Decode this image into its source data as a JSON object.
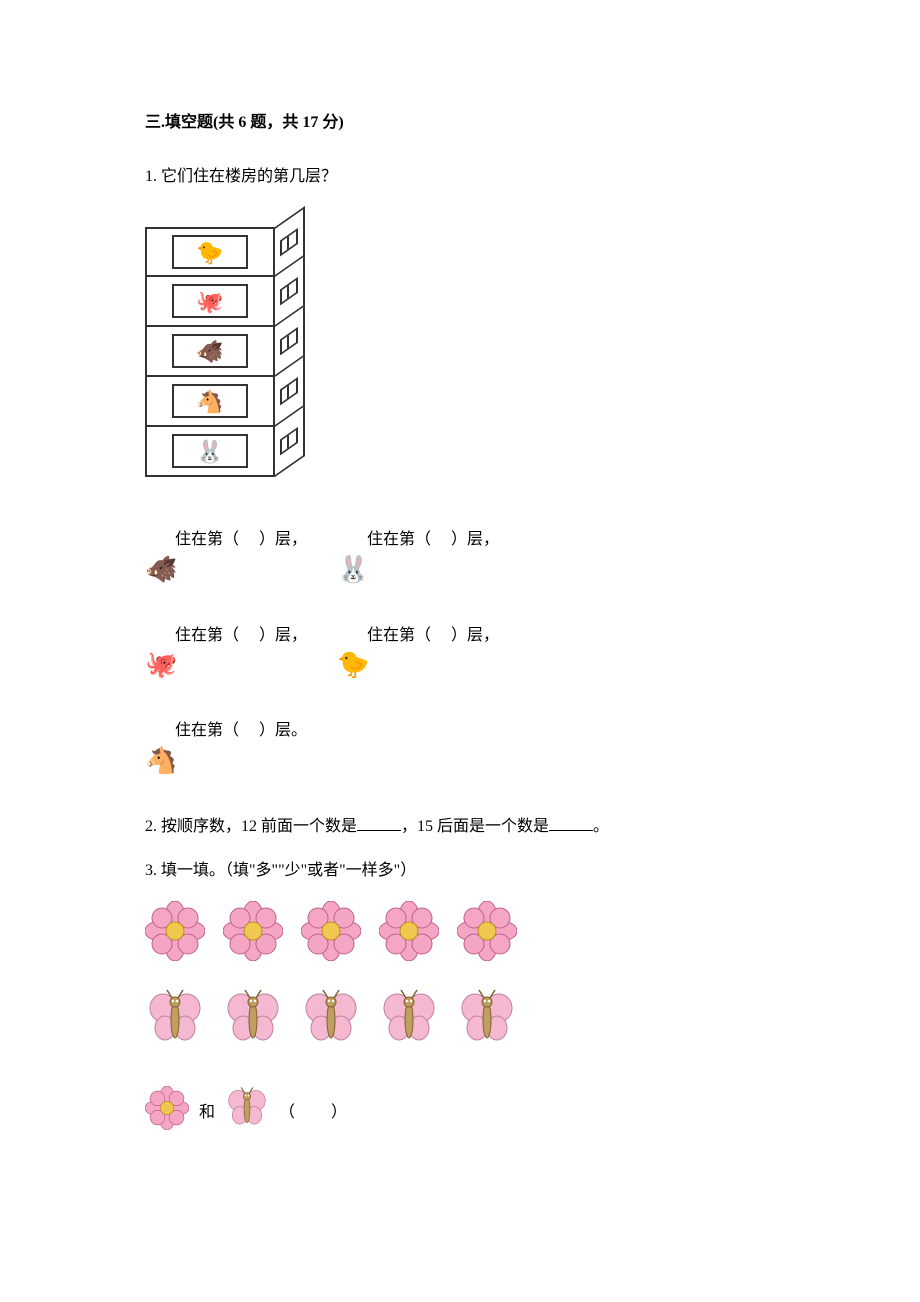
{
  "section": {
    "title": "三.填空题(共 6 题，共 17 分)"
  },
  "q1": {
    "number": "1.",
    "text": "它们住在楼房的第几层？",
    "floors": [
      {
        "animal": "🐤"
      },
      {
        "animal": "🐙"
      },
      {
        "animal": "🐗"
      },
      {
        "animal": "🐴"
      },
      {
        "animal": "🐰"
      }
    ],
    "answers": {
      "prefix": "住在第（",
      "suffix_comma": "）层，",
      "suffix_period": "）层。",
      "items": [
        {
          "icon": "🐗"
        },
        {
          "icon": "🐰"
        },
        {
          "icon": "🐙"
        },
        {
          "icon": "🐤"
        },
        {
          "icon": "🐴"
        }
      ]
    }
  },
  "q2": {
    "number": "2.",
    "part1": "按顺序数，12 前面一个数是",
    "part2": "，15 后面是一个数是",
    "part3": "。"
  },
  "q3": {
    "number": "3.",
    "text": "填一填。（填\"多\"\"少\"或者\"一样多\"）",
    "flower_count": 5,
    "butterfly_count": 5,
    "and_text": "和",
    "paren_open": "（",
    "paren_close": "）",
    "flower_color": "#f4a6c4",
    "flower_center": "#f0c850",
    "butterfly_color": "#f4b8d0",
    "butterfly_body": "#c0a060"
  }
}
